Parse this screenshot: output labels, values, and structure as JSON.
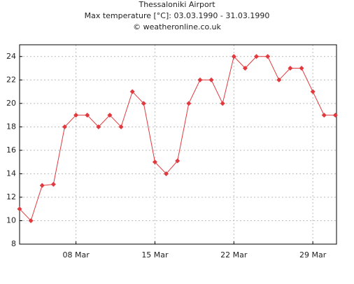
{
  "chart_data": {
    "type": "line",
    "title": "Thessaloniki Airport",
    "subtitle": "Max temperature [°C]: 03.03.1990 - 31.03.1990",
    "credit": "© weatheronline.co.uk",
    "x": [
      3,
      4,
      5,
      6,
      7,
      8,
      9,
      10,
      11,
      12,
      13,
      14,
      15,
      16,
      17,
      18,
      19,
      20,
      21,
      22,
      23,
      24,
      25,
      26,
      27,
      28,
      29,
      30,
      31
    ],
    "series": [
      {
        "name": "Max temperature",
        "color": "#e0393e",
        "values": [
          11,
          10,
          13,
          13.1,
          18,
          19,
          19,
          18,
          19,
          18,
          21,
          20,
          15,
          14,
          15.1,
          20,
          22,
          22,
          20,
          24,
          23,
          24,
          24,
          22,
          23,
          23,
          21,
          19,
          19
        ]
      }
    ],
    "xlim": [
      3,
      31.1
    ],
    "xticks": [
      {
        "value": 8,
        "label": "08 Mar"
      },
      {
        "value": 15,
        "label": "15 Mar"
      },
      {
        "value": 22,
        "label": "22 Mar"
      },
      {
        "value": 29,
        "label": "29 Mar"
      }
    ],
    "ylim": [
      8,
      25
    ],
    "yticks": [
      8,
      10,
      12,
      14,
      16,
      18,
      20,
      22,
      24
    ],
    "grid": true
  }
}
